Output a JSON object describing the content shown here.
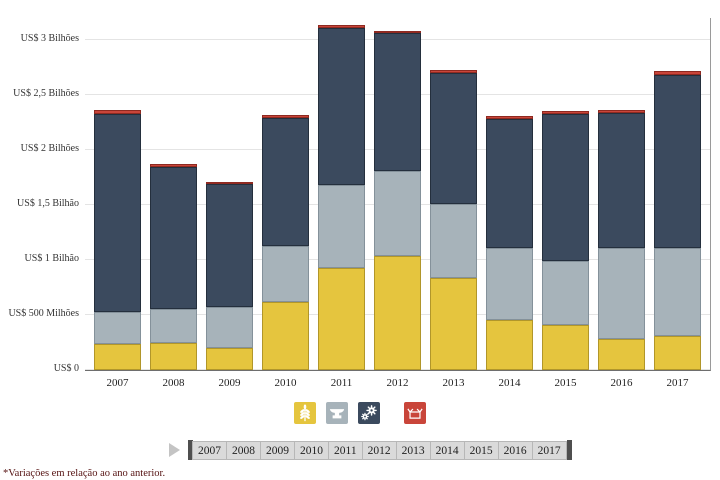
{
  "chart_data": {
    "type": "bar",
    "stacked": true,
    "title": "",
    "categories": [
      "2007",
      "2008",
      "2009",
      "2010",
      "2011",
      "2012",
      "2013",
      "2014",
      "2015",
      "2016",
      "2017"
    ],
    "series": [
      {
        "name": "wheat",
        "icon": "wheat-icon",
        "color": "#e5c53e",
        "border": "#b1962a",
        "values": [
          240,
          245,
          200,
          620,
          930,
          1040,
          840,
          455,
          410,
          280,
          305
        ]
      },
      {
        "name": "anvil",
        "icon": "anvil-icon",
        "color": "#a7b3ba",
        "border": "#84919a",
        "values": [
          290,
          310,
          370,
          510,
          750,
          770,
          670,
          650,
          580,
          830,
          800
        ]
      },
      {
        "name": "gears",
        "icon": "gears-icon",
        "color": "#3b4a5e",
        "border": "#242f3d",
        "values": [
          1800,
          1290,
          1120,
          1160,
          1430,
          1250,
          1190,
          1180,
          1340,
          1230,
          1580
        ]
      },
      {
        "name": "package",
        "icon": "package-icon",
        "color": "#c9453a",
        "border": "#8f2a21",
        "values": [
          30,
          25,
          20,
          30,
          30,
          25,
          25,
          25,
          25,
          20,
          30
        ]
      }
    ],
    "values_unit_millions_usd": true,
    "y_ticks": [
      {
        "value": 0,
        "label": "US$ 0"
      },
      {
        "value": 500,
        "label": "US$ 500 Milhões"
      },
      {
        "value": 1000,
        "label": "US$ 1 Bilhão"
      },
      {
        "value": 1500,
        "label": "US$ 1,5 Bilhão"
      },
      {
        "value": 2000,
        "label": "US$ 2 Bilhões"
      },
      {
        "value": 2500,
        "label": "US$ 2,5 Bilhões"
      },
      {
        "value": 3000,
        "label": "US$ 3 Bilhões"
      }
    ],
    "ylim": [
      0,
      3200
    ],
    "grid": true,
    "legend_position": "bottom"
  },
  "timeline": {
    "years": [
      "2007",
      "2008",
      "2009",
      "2010",
      "2011",
      "2012",
      "2013",
      "2014",
      "2015",
      "2016",
      "2017"
    ]
  },
  "footer": {
    "note": "*Variações em relação ao ano anterior."
  }
}
